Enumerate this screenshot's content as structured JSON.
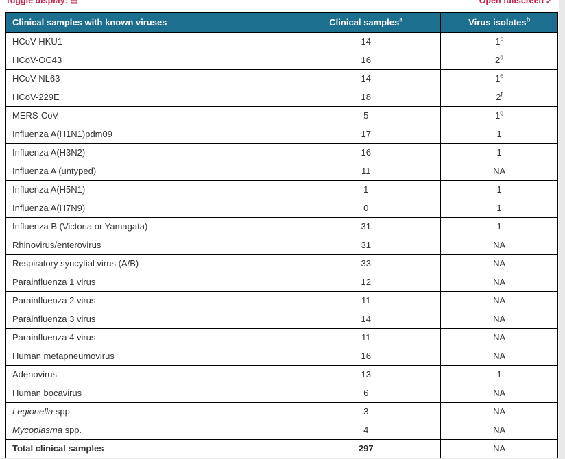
{
  "toolbar": {
    "toggle_display_label": "Toggle display:",
    "open_fullscreen_label": "Open fullscreen",
    "link_color": "#c2254c"
  },
  "table": {
    "header": {
      "col1": "Clinical samples with known viruses",
      "col2": "Clinical samples",
      "col2_sup": "a",
      "col3": "Virus isolates",
      "col3_sup": "b",
      "bg_color": "#1d6f8f",
      "text_color": "#ffffff"
    },
    "rows": [
      {
        "name_italic": "",
        "name": "HCoV-HKU1",
        "samples": "14",
        "isolates": "1",
        "isolates_sup": "c",
        "bold": false
      },
      {
        "name_italic": "",
        "name": "HCoV-OC43",
        "samples": "16",
        "isolates": "2",
        "isolates_sup": "d",
        "bold": false
      },
      {
        "name_italic": "",
        "name": "HCoV-NL63",
        "samples": "14",
        "isolates": "1",
        "isolates_sup": "e",
        "bold": false
      },
      {
        "name_italic": "",
        "name": "HCoV-229E",
        "samples": "18",
        "isolates": "2",
        "isolates_sup": "f",
        "bold": false
      },
      {
        "name_italic": "",
        "name": "MERS-CoV",
        "samples": "5",
        "isolates": "1",
        "isolates_sup": "g",
        "bold": false
      },
      {
        "name_italic": "",
        "name": "Influenza A(H1N1)pdm09",
        "samples": "17",
        "isolates": "1",
        "isolates_sup": "",
        "bold": false
      },
      {
        "name_italic": "",
        "name": "Influenza A(H3N2)",
        "samples": "16",
        "isolates": "1",
        "isolates_sup": "",
        "bold": false
      },
      {
        "name_italic": "",
        "name": "Influenza A (untyped)",
        "samples": "11",
        "isolates": "NA",
        "isolates_sup": "",
        "bold": false
      },
      {
        "name_italic": "",
        "name": "Influenza A(H5N1)",
        "samples": "1",
        "isolates": "1",
        "isolates_sup": "",
        "bold": false
      },
      {
        "name_italic": "",
        "name": "Influenza A(H7N9)",
        "samples": "0",
        "isolates": "1",
        "isolates_sup": "",
        "bold": false
      },
      {
        "name_italic": "",
        "name": "Influenza B (Victoria or Yamagata)",
        "samples": "31",
        "isolates": "1",
        "isolates_sup": "",
        "bold": false
      },
      {
        "name_italic": "",
        "name": "Rhinovirus/enterovirus",
        "samples": "31",
        "isolates": "NA",
        "isolates_sup": "",
        "bold": false
      },
      {
        "name_italic": "",
        "name": "Respiratory syncytial virus (A/B)",
        "samples": "33",
        "isolates": "NA",
        "isolates_sup": "",
        "bold": false
      },
      {
        "name_italic": "",
        "name": "Parainfluenza 1 virus",
        "samples": "12",
        "isolates": "NA",
        "isolates_sup": "",
        "bold": false
      },
      {
        "name_italic": "",
        "name": "Parainfluenza 2 virus",
        "samples": "11",
        "isolates": "NA",
        "isolates_sup": "",
        "bold": false
      },
      {
        "name_italic": "",
        "name": "Parainfluenza 3 virus",
        "samples": "14",
        "isolates": "NA",
        "isolates_sup": "",
        "bold": false
      },
      {
        "name_italic": "",
        "name": "Parainfluenza 4 virus",
        "samples": "11",
        "isolates": "NA",
        "isolates_sup": "",
        "bold": false
      },
      {
        "name_italic": "",
        "name": "Human metapneumovirus",
        "samples": "16",
        "isolates": "NA",
        "isolates_sup": "",
        "bold": false
      },
      {
        "name_italic": "",
        "name": "Adenovirus",
        "samples": "13",
        "isolates": "1",
        "isolates_sup": "",
        "bold": false
      },
      {
        "name_italic": "",
        "name": "Human bocavirus",
        "samples": "6",
        "isolates": "NA",
        "isolates_sup": "",
        "bold": false
      },
      {
        "name_italic": "Legionella",
        "name": " spp.",
        "samples": "3",
        "isolates": "NA",
        "isolates_sup": "",
        "bold": false
      },
      {
        "name_italic": "Mycoplasma",
        "name": " spp.",
        "samples": "4",
        "isolates": "NA",
        "isolates_sup": "",
        "bold": false
      },
      {
        "name_italic": "",
        "name": "Total clinical samples",
        "samples": "297",
        "isolates": "NA",
        "isolates_sup": "",
        "bold": true
      }
    ]
  }
}
